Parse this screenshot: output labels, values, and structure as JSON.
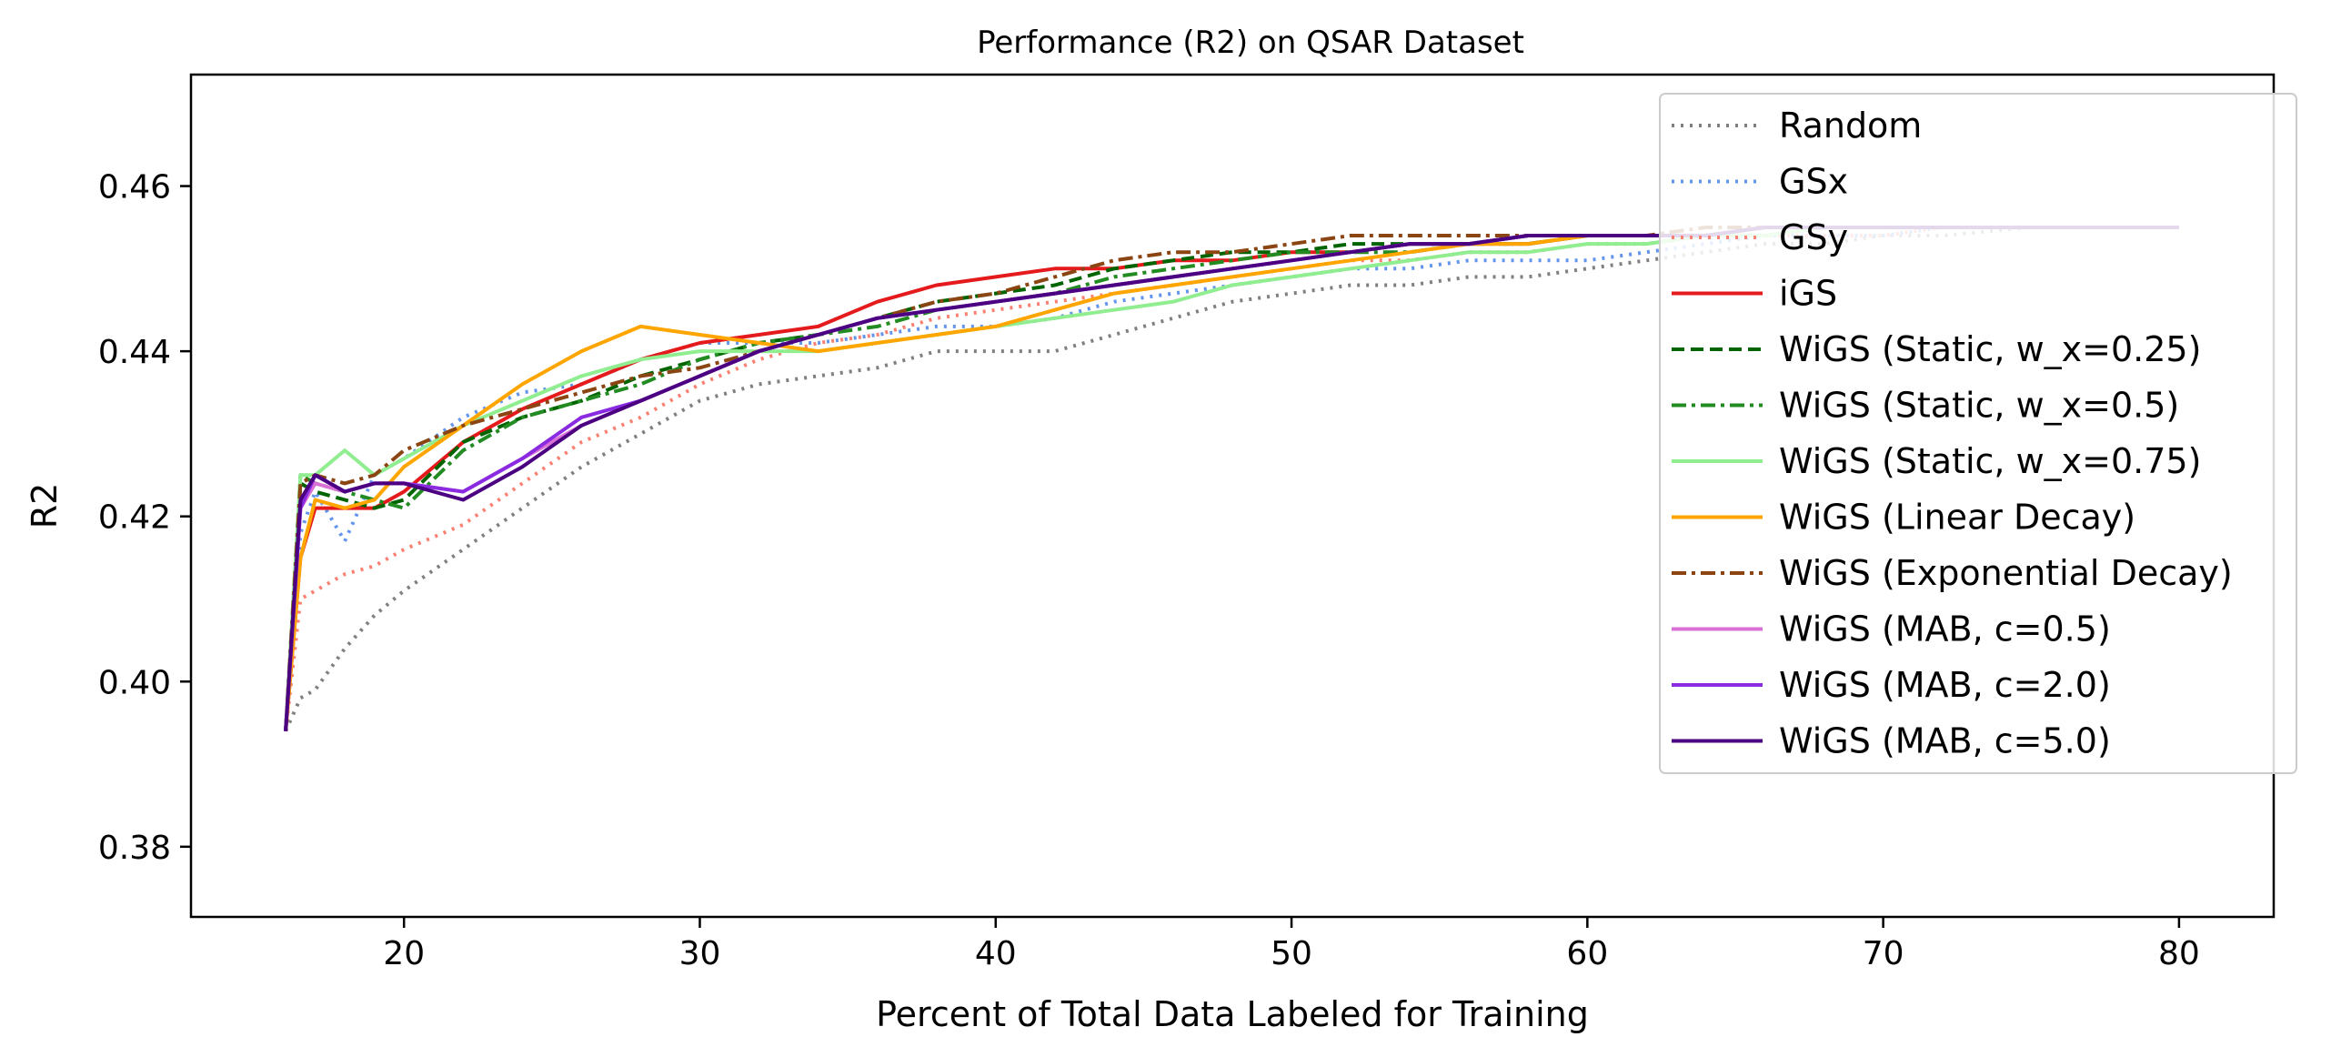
{
  "chart_data": {
    "type": "line",
    "title": "Performance (R2) on QSAR Dataset",
    "xlabel": "Percent of Total Data Labeled for Training",
    "ylabel": "R2",
    "xlim": [
      12.8,
      83.2
    ],
    "ylim": [
      0.3715,
      0.4735
    ],
    "xticks": [
      20,
      30,
      40,
      50,
      60,
      70,
      80
    ],
    "yticks": [
      0.38,
      0.4,
      0.42,
      0.44,
      0.46
    ],
    "xtick_labels": [
      "20",
      "30",
      "40",
      "50",
      "60",
      "70",
      "80"
    ],
    "ytick_labels": [
      "0.38",
      "0.40",
      "0.42",
      "0.44",
      "0.46"
    ],
    "grid": false,
    "legend_position": "upper-right",
    "series": [
      {
        "name": "Random",
        "color": "#808080",
        "style": "dotted",
        "x": [
          16,
          16.5,
          17,
          18,
          19,
          20,
          22,
          24,
          26,
          28,
          30,
          32,
          34,
          36,
          38,
          40,
          42,
          44,
          46,
          48,
          50,
          52,
          54,
          56,
          58,
          60,
          62,
          64,
          66,
          68,
          70,
          72,
          75,
          78,
          80
        ],
        "y": [
          0.394,
          0.398,
          0.399,
          0.404,
          0.408,
          0.411,
          0.416,
          0.421,
          0.426,
          0.43,
          0.434,
          0.436,
          0.437,
          0.438,
          0.44,
          0.44,
          0.44,
          0.442,
          0.444,
          0.446,
          0.447,
          0.448,
          0.448,
          0.449,
          0.449,
          0.45,
          0.451,
          0.452,
          0.453,
          0.453,
          0.454,
          0.454,
          0.455,
          0.455,
          0.455
        ]
      },
      {
        "name": "GSx",
        "color": "#6495ED",
        "style": "dotted",
        "x": [
          16,
          16.5,
          17,
          18,
          19,
          20,
          22,
          24,
          26,
          28,
          30,
          32,
          34,
          36,
          38,
          40,
          42,
          44,
          46,
          48,
          50,
          52,
          54,
          56,
          58,
          60,
          62,
          64,
          66,
          68,
          70,
          72,
          75,
          78,
          80
        ],
        "y": [
          0.394,
          0.418,
          0.423,
          0.417,
          0.425,
          0.427,
          0.432,
          0.435,
          0.436,
          0.439,
          0.441,
          0.441,
          0.441,
          0.442,
          0.443,
          0.443,
          0.444,
          0.446,
          0.447,
          0.448,
          0.449,
          0.45,
          0.45,
          0.451,
          0.451,
          0.451,
          0.452,
          0.453,
          0.454,
          0.454,
          0.454,
          0.455,
          0.455,
          0.455,
          0.455
        ]
      },
      {
        "name": "GSy",
        "color": "#FA8072",
        "style": "dotted",
        "x": [
          16,
          16.5,
          17,
          18,
          19,
          20,
          22,
          24,
          26,
          28,
          30,
          32,
          34,
          36,
          38,
          40,
          42,
          44,
          46,
          48,
          50,
          52,
          54,
          56,
          58,
          60,
          62,
          64,
          66,
          68,
          70,
          72,
          75,
          78,
          80
        ],
        "y": [
          0.394,
          0.41,
          0.411,
          0.413,
          0.414,
          0.416,
          0.419,
          0.424,
          0.429,
          0.432,
          0.436,
          0.439,
          0.441,
          0.442,
          0.444,
          0.445,
          0.446,
          0.447,
          0.448,
          0.449,
          0.45,
          0.451,
          0.451,
          0.452,
          0.452,
          0.453,
          0.453,
          0.454,
          0.454,
          0.454,
          0.454,
          0.455,
          0.455,
          0.455,
          0.455
        ]
      },
      {
        "name": "iGS",
        "color": "#E41A1C",
        "style": "solid",
        "x": [
          16,
          16.5,
          17,
          18,
          19,
          20,
          22,
          24,
          26,
          28,
          30,
          32,
          34,
          36,
          38,
          40,
          42,
          44,
          46,
          48,
          50,
          52,
          54,
          56,
          58,
          60,
          62,
          64,
          66,
          68,
          70,
          72,
          75,
          78,
          80
        ],
        "y": [
          0.394,
          0.415,
          0.421,
          0.421,
          0.421,
          0.423,
          0.429,
          0.433,
          0.436,
          0.439,
          0.441,
          0.442,
          0.443,
          0.446,
          0.448,
          0.449,
          0.45,
          0.45,
          0.451,
          0.451,
          0.452,
          0.452,
          0.453,
          0.453,
          0.453,
          0.454,
          0.454,
          0.454,
          0.454,
          0.455,
          0.455,
          0.455,
          0.455,
          0.455,
          0.455
        ]
      },
      {
        "name": "WiGS (Static, w_x=0.25)",
        "color": "#006400",
        "style": "dashed",
        "x": [
          16,
          16.5,
          17,
          18,
          19,
          20,
          22,
          24,
          26,
          28,
          30,
          32,
          34,
          36,
          38,
          40,
          42,
          44,
          46,
          48,
          50,
          52,
          54,
          56,
          58,
          60,
          62,
          64,
          66,
          68,
          70,
          72,
          75,
          78,
          80
        ],
        "y": [
          0.394,
          0.424,
          0.423,
          0.422,
          0.421,
          0.422,
          0.429,
          0.432,
          0.434,
          0.437,
          0.439,
          0.441,
          0.442,
          0.444,
          0.446,
          0.447,
          0.448,
          0.45,
          0.451,
          0.452,
          0.452,
          0.453,
          0.453,
          0.453,
          0.454,
          0.454,
          0.454,
          0.454,
          0.455,
          0.455,
          0.455,
          0.455,
          0.455,
          0.455,
          0.455
        ]
      },
      {
        "name": "WiGS (Static, w_x=0.5)",
        "color": "#228B22",
        "style": "dashdot",
        "x": [
          16,
          16.5,
          17,
          18,
          19,
          20,
          22,
          24,
          26,
          28,
          30,
          32,
          34,
          36,
          38,
          40,
          42,
          44,
          46,
          48,
          50,
          52,
          54,
          56,
          58,
          60,
          62,
          64,
          66,
          68,
          70,
          72,
          75,
          78,
          80
        ],
        "y": [
          0.394,
          0.425,
          0.424,
          0.423,
          0.422,
          0.421,
          0.428,
          0.432,
          0.434,
          0.436,
          0.439,
          0.441,
          0.442,
          0.443,
          0.445,
          0.446,
          0.447,
          0.449,
          0.45,
          0.451,
          0.452,
          0.452,
          0.452,
          0.453,
          0.453,
          0.454,
          0.454,
          0.454,
          0.455,
          0.455,
          0.455,
          0.455,
          0.455,
          0.455,
          0.455
        ]
      },
      {
        "name": "WiGS (Static, w_x=0.75)",
        "color": "#90EE90",
        "style": "solid",
        "x": [
          16,
          16.5,
          17,
          18,
          19,
          20,
          22,
          24,
          26,
          28,
          30,
          32,
          34,
          36,
          38,
          40,
          42,
          44,
          46,
          48,
          50,
          52,
          54,
          56,
          58,
          60,
          62,
          64,
          66,
          68,
          70,
          72,
          75,
          78,
          80
        ],
        "y": [
          0.394,
          0.425,
          0.425,
          0.428,
          0.425,
          0.427,
          0.431,
          0.434,
          0.437,
          0.439,
          0.44,
          0.44,
          0.44,
          0.441,
          0.442,
          0.443,
          0.444,
          0.445,
          0.446,
          0.448,
          0.449,
          0.45,
          0.451,
          0.452,
          0.452,
          0.453,
          0.453,
          0.454,
          0.454,
          0.455,
          0.455,
          0.455,
          0.455,
          0.455,
          0.455
        ]
      },
      {
        "name": "WiGS (Linear Decay)",
        "color": "#FFA500",
        "style": "solid",
        "x": [
          16,
          16.5,
          17,
          18,
          19,
          20,
          22,
          24,
          26,
          28,
          30,
          32,
          34,
          36,
          38,
          40,
          42,
          44,
          46,
          48,
          50,
          52,
          54,
          56,
          58,
          60,
          62,
          64,
          66,
          68,
          70,
          72,
          75,
          78,
          80
        ],
        "y": [
          0.394,
          0.415,
          0.422,
          0.421,
          0.422,
          0.426,
          0.431,
          0.436,
          0.44,
          0.443,
          0.442,
          0.441,
          0.44,
          0.441,
          0.442,
          0.443,
          0.445,
          0.447,
          0.448,
          0.449,
          0.45,
          0.451,
          0.452,
          0.453,
          0.453,
          0.454,
          0.454,
          0.454,
          0.455,
          0.455,
          0.455,
          0.455,
          0.455,
          0.455,
          0.455
        ]
      },
      {
        "name": "WiGS (Exponential Decay)",
        "color": "#8B4513",
        "style": "dashdot",
        "x": [
          16,
          16.5,
          17,
          18,
          19,
          20,
          22,
          24,
          26,
          28,
          30,
          32,
          34,
          36,
          38,
          40,
          42,
          44,
          46,
          48,
          50,
          52,
          54,
          56,
          58,
          60,
          62,
          64,
          66,
          68,
          70,
          72,
          75,
          78,
          80
        ],
        "y": [
          0.394,
          0.424,
          0.425,
          0.424,
          0.425,
          0.428,
          0.431,
          0.433,
          0.435,
          0.437,
          0.438,
          0.44,
          0.442,
          0.444,
          0.446,
          0.447,
          0.449,
          0.451,
          0.452,
          0.452,
          0.453,
          0.454,
          0.454,
          0.454,
          0.454,
          0.454,
          0.454,
          0.455,
          0.455,
          0.455,
          0.455,
          0.455,
          0.455,
          0.455,
          0.455
        ]
      },
      {
        "name": "WiGS (MAB, c=0.5)",
        "color": "#DA70D6",
        "style": "solid",
        "x": [
          16,
          16.5,
          17,
          18,
          19,
          20,
          22,
          24,
          26,
          28,
          30,
          32,
          34,
          36,
          38,
          40,
          42,
          44,
          46,
          48,
          50,
          52,
          54,
          56,
          58,
          60,
          62,
          64,
          66,
          68,
          70,
          72,
          75,
          78,
          80
        ],
        "y": [
          0.394,
          0.421,
          0.424,
          0.423,
          0.424,
          0.424,
          0.423,
          0.427,
          0.431,
          0.434,
          0.437,
          0.44,
          0.442,
          0.444,
          0.445,
          0.446,
          0.447,
          0.448,
          0.449,
          0.45,
          0.451,
          0.452,
          0.453,
          0.453,
          0.454,
          0.454,
          0.454,
          0.454,
          0.455,
          0.455,
          0.455,
          0.455,
          0.455,
          0.455,
          0.455
        ]
      },
      {
        "name": "WiGS (MAB, c=2.0)",
        "color": "#8A2BE2",
        "style": "solid",
        "x": [
          16,
          16.5,
          17,
          18,
          19,
          20,
          22,
          24,
          26,
          28,
          30,
          32,
          34,
          36,
          38,
          40,
          42,
          44,
          46,
          48,
          50,
          52,
          54,
          56,
          58,
          60,
          62,
          64,
          66,
          68,
          70,
          72,
          75,
          78,
          80
        ],
        "y": [
          0.394,
          0.421,
          0.425,
          0.423,
          0.424,
          0.424,
          0.423,
          0.427,
          0.432,
          0.434,
          0.437,
          0.44,
          0.442,
          0.444,
          0.445,
          0.446,
          0.447,
          0.448,
          0.449,
          0.45,
          0.451,
          0.452,
          0.453,
          0.453,
          0.454,
          0.454,
          0.454,
          0.454,
          0.455,
          0.455,
          0.455,
          0.455,
          0.455,
          0.455,
          0.455
        ]
      },
      {
        "name": "WiGS (MAB, c=5.0)",
        "color": "#4B0082",
        "style": "solid",
        "x": [
          16,
          16.5,
          17,
          18,
          19,
          20,
          22,
          24,
          26,
          28,
          30,
          32,
          34,
          36,
          38,
          40,
          42,
          44,
          46,
          48,
          50,
          52,
          54,
          56,
          58,
          60,
          62,
          64,
          66,
          68,
          70,
          72,
          75,
          78,
          80
        ],
        "y": [
          0.394,
          0.422,
          0.425,
          0.423,
          0.424,
          0.424,
          0.422,
          0.426,
          0.431,
          0.434,
          0.437,
          0.44,
          0.442,
          0.444,
          0.445,
          0.446,
          0.447,
          0.448,
          0.449,
          0.45,
          0.451,
          0.452,
          0.453,
          0.453,
          0.454,
          0.454,
          0.454,
          0.454,
          0.455,
          0.455,
          0.455,
          0.455,
          0.455,
          0.455,
          0.455
        ]
      }
    ]
  }
}
